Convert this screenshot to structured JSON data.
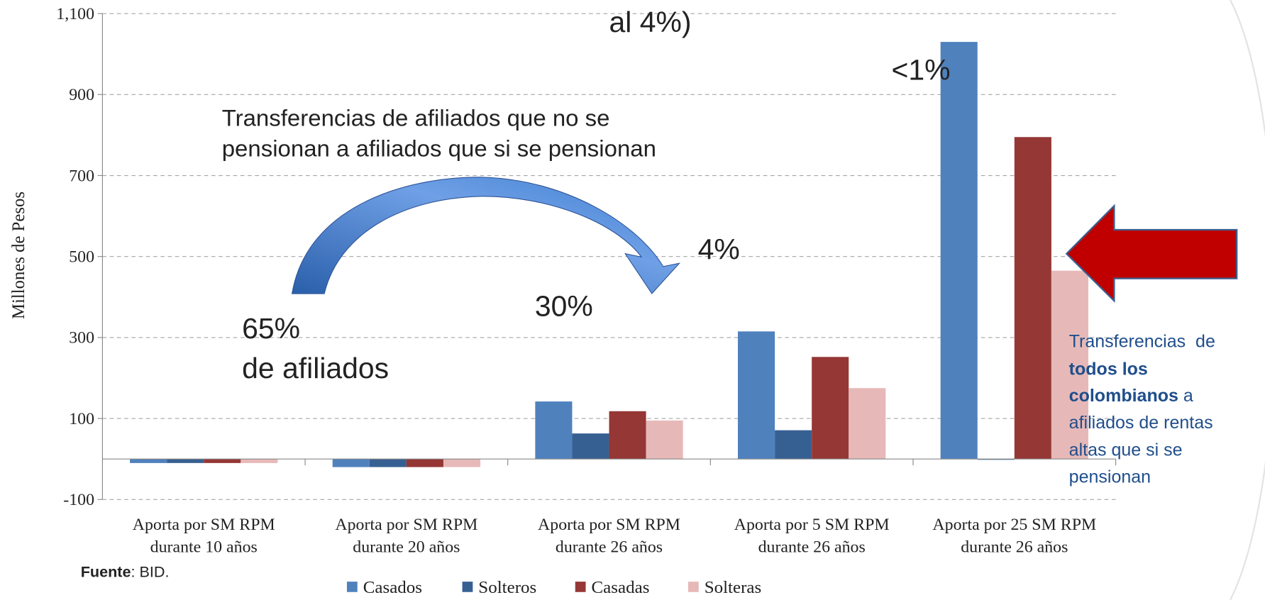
{
  "chart_data": {
    "type": "bar",
    "y_label": "Millones de Pesos",
    "categories": [
      "Aporta por SM RPM durante 10 años",
      "Aporta por SM RPM durante 20 años",
      "Aporta por SM RPM durante 26 años",
      "Aporta por 5 SM RPM durante 26 años",
      "Aporta por 25 SM RPM durante 26 años"
    ],
    "series": [
      {
        "name": "Casados",
        "color": "#4f81bd",
        "values": [
          -10,
          -20,
          142,
          315,
          1030
        ]
      },
      {
        "name": "Solteros",
        "color": "#376092",
        "values": [
          -10,
          -20,
          63,
          71,
          -2
        ]
      },
      {
        "name": "Casadas",
        "color": "#953735",
        "values": [
          -10,
          -20,
          118,
          252,
          795
        ]
      },
      {
        "name": "Solteras",
        "color": "#e6b9b8",
        "values": [
          -10,
          -20,
          95,
          175,
          465
        ]
      }
    ],
    "ylim": [
      -100,
      1100
    ],
    "yticks": [
      -100,
      100,
      300,
      500,
      700,
      900,
      {
        "value": 1100,
        "label": "1,100"
      }
    ],
    "grid": true,
    "legend": "bottom",
    "annotations": [
      "al 4%)",
      "<1%",
      "Transferencias de afiliados que no se",
      "pensionan a afiliados que si se pensionan",
      "4%",
      "30%",
      "65%",
      "de afiliados"
    ],
    "side_note": [
      "Transferencias  de",
      "todos los",
      "colombianos",
      " a",
      "afiliados de rentas",
      "altas que si se",
      "pensionan"
    ],
    "source": {
      "label": "Fuente",
      "text": ": BID."
    }
  }
}
